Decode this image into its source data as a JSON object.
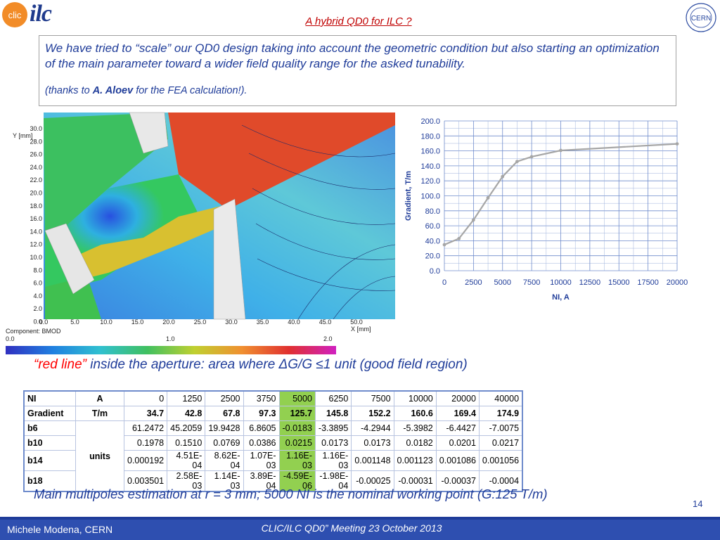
{
  "header": {
    "title": "A hybrid QD0 for ILC ?",
    "ilc_logo_text": "ilc",
    "cern_logo_text": "CERN",
    "clic_logo_text": "clic"
  },
  "intro": {
    "text": "We have tried to “scale” our QD0 design taking into account the geometric condition but also starting an optimization of the main parameter toward a wider field quality range for the asked tunability.",
    "thanks_prefix": "(thanks to ",
    "thanks_name": "A. Aloev",
    "thanks_suffix": " for the FEA calculation!)."
  },
  "fea": {
    "y_axis_label": "Y [mm]",
    "x_axis_label": "X [mm]",
    "y_ticks": [
      "30.0",
      "28.0",
      "26.0",
      "24.0",
      "22.0",
      "20.0",
      "18.0",
      "16.0",
      "14.0",
      "12.0",
      "10.0",
      "8.0",
      "6.0",
      "4.0",
      "2.0",
      "0.0"
    ],
    "x_ticks": [
      "0.0",
      "5.0",
      "10.0",
      "15.0",
      "20.0",
      "25.0",
      "30.0",
      "35.0",
      "40.0",
      "45.0",
      "50.0"
    ],
    "component_label": "Component: BMOD",
    "colorbar_ticks": [
      "0.0",
      "1.0",
      "2.0"
    ]
  },
  "chart_data": {
    "type": "line",
    "title": "",
    "xlabel": "NI, A",
    "ylabel": "Gradient, T/m",
    "x": [
      0,
      1250,
      2500,
      3750,
      5000,
      6250,
      7500,
      10000,
      20000
    ],
    "series": [
      {
        "values": [
          34.7,
          42.8,
          67.8,
          97.3,
          125.7,
          145.8,
          152.2,
          160.6,
          169.4
        ]
      }
    ],
    "xlim": [
      0,
      20000
    ],
    "ylim": [
      0,
      200
    ],
    "x_ticks": [
      "0",
      "2500",
      "5000",
      "7500",
      "10000",
      "12500",
      "15000",
      "17500",
      "20000"
    ],
    "y_ticks": [
      "0.0",
      "20.0",
      "40.0",
      "60.0",
      "80.0",
      "100.0",
      "120.0",
      "140.0",
      "160.0",
      "180.0",
      "200.0"
    ],
    "grid": true,
    "color": "#a6a6a6"
  },
  "redline_caption": {
    "red_part": "“red line”",
    "rest": " inside the aperture: area where ΔG/G ≤1 unit (good field region)"
  },
  "table": {
    "rows": [
      {
        "label": "NI",
        "unit": "A",
        "values": [
          "0",
          "1250",
          "2500",
          "3750",
          "5000",
          "6250",
          "7500",
          "10000",
          "20000",
          "40000"
        ]
      },
      {
        "label": "Gradient",
        "unit": "T/m",
        "values": [
          "34.7",
          "42.8",
          "67.8",
          "97.3",
          "125.7",
          "145.8",
          "152.2",
          "160.6",
          "169.4",
          "174.9"
        ]
      },
      {
        "label": "b6",
        "unit": "",
        "values": [
          "61.2472",
          "45.2059",
          "19.9428",
          "6.8605",
          "-0.0183",
          "-3.3895",
          "-4.2944",
          "-5.3982",
          "-6.4427",
          "-7.0075"
        ]
      },
      {
        "label": "b10",
        "unit": "units",
        "values": [
          "0.1978",
          "0.1510",
          "0.0769",
          "0.0386",
          "0.0215",
          "0.0173",
          "0.0173",
          "0.0182",
          "0.0201",
          "0.0217"
        ]
      },
      {
        "label": "b14",
        "unit": "",
        "values": [
          "0.000192",
          "4.51E-04",
          "8.62E-04",
          "1.07E-03",
          "1.16E-03",
          "1.16E-03",
          "0.001148",
          "0.001123",
          "0.001086",
          "0.001056"
        ]
      },
      {
        "label": "b18",
        "unit": "",
        "values": [
          "0.003501",
          "2.58E-03",
          "1.14E-03",
          "3.89E-04",
          "-4.59E-06",
          "-1.98E-04",
          "-0.00025",
          "-0.00031",
          "-0.00037",
          "-0.0004"
        ]
      }
    ],
    "highlight_color": "#92d050"
  },
  "caption": "Main multipoles estimation at r = 3 mm; 5000 NI is the nominal  working point (G:125 T/m)",
  "slide_number": "14",
  "footer": {
    "author": "Michele Modena, CERN",
    "meeting": "CLIC/ILC QD0” Meeting 23 October 2013"
  }
}
